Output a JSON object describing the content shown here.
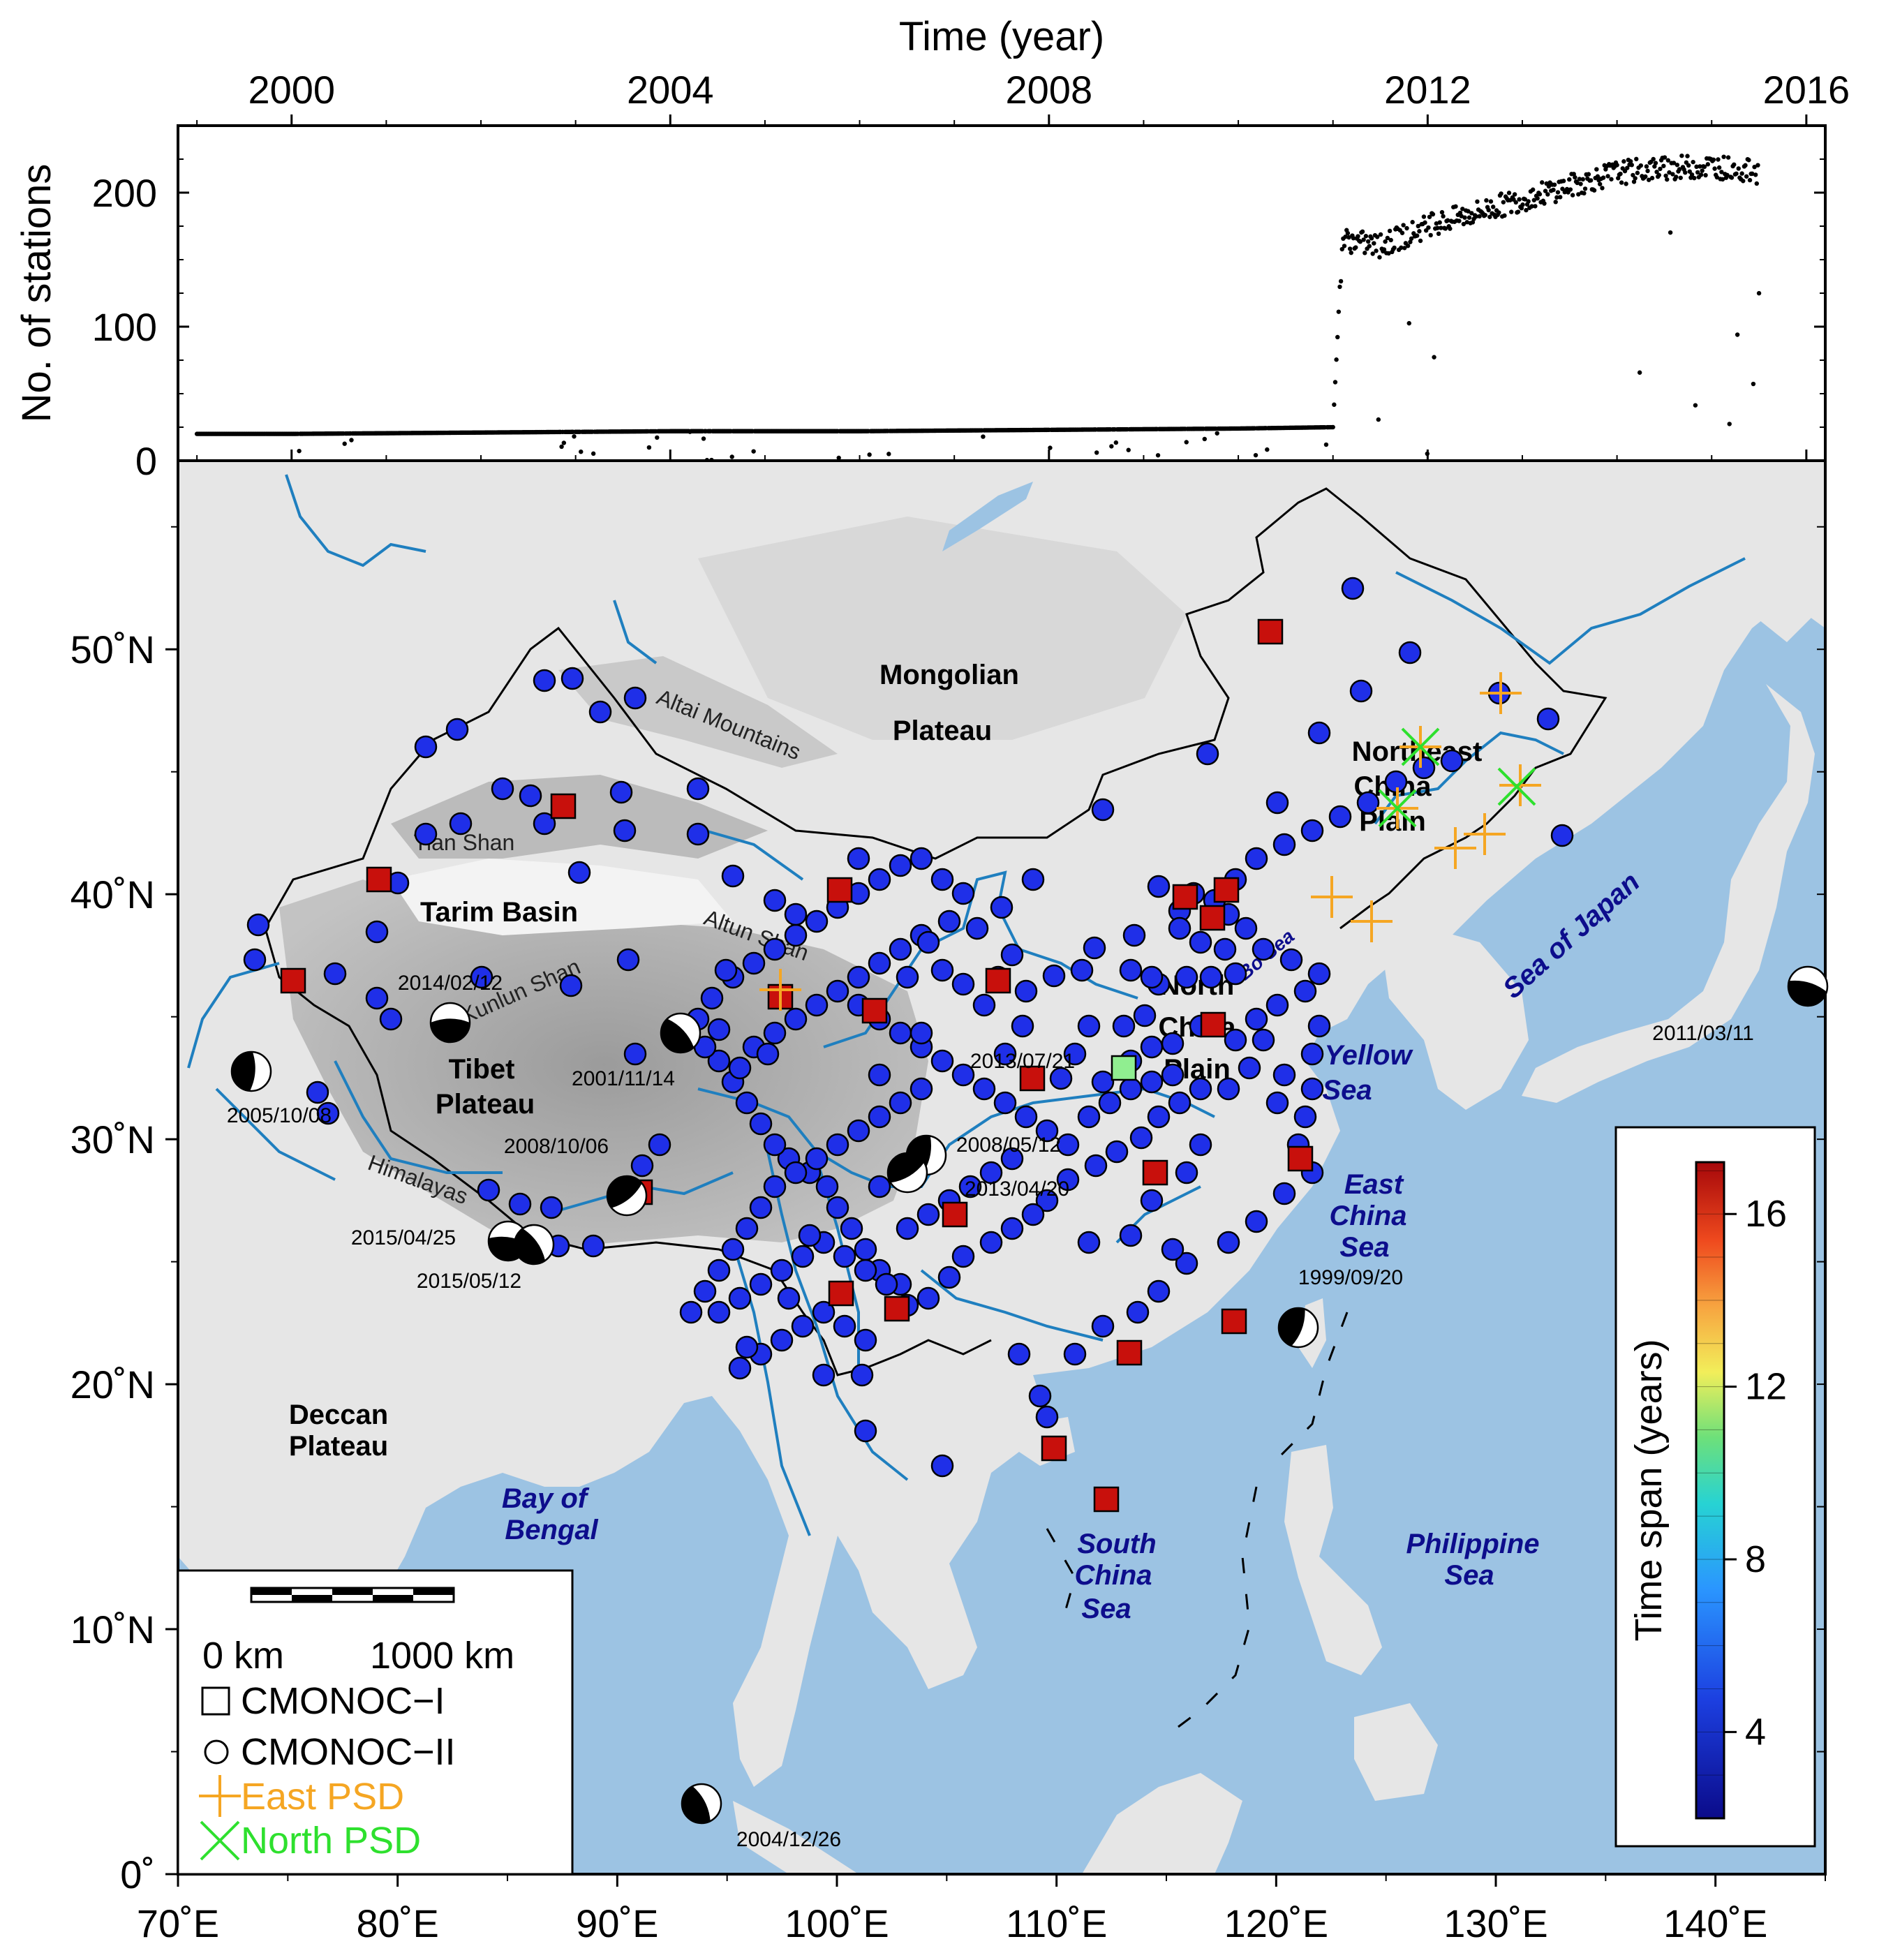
{
  "timeseries": {
    "x_title": "Time (year)",
    "y_title": "No. of stations",
    "x_ticks": [
      "2000",
      "2004",
      "2008",
      "2012",
      "2016"
    ],
    "y_ticks": [
      "0",
      "100",
      "200"
    ]
  },
  "chart_data": {
    "type": "scatter",
    "xlabel": "Time (year)",
    "ylabel": "No. of stations",
    "xlim": [
      1998.8,
      2016.2
    ],
    "ylim": [
      0,
      250
    ],
    "series": [
      {
        "values_description_x": [
          1999.0,
          2000.0,
          2002.0,
          2004.0,
          2006.0,
          2008.0,
          2010.0,
          2011.0,
          2011.1,
          2011.5,
          2012.0,
          2012.5,
          2013.0,
          2013.5,
          2014.0,
          2014.5,
          2015.0,
          2015.5
        ],
        "y": [
          20,
          20,
          21,
          22,
          22,
          23,
          24,
          25,
          165,
          160,
          175,
          185,
          195,
          205,
          215,
          218,
          220,
          215
        ]
      }
    ]
  },
  "map": {
    "lon_ticks": [
      "70˚E",
      "80˚E",
      "90˚E",
      "100˚E",
      "110˚E",
      "120˚E",
      "130˚E",
      "140˚E"
    ],
    "lat_ticks": [
      "0˚",
      "10˚N",
      "20˚N",
      "30˚N",
      "40˚N",
      "50˚N"
    ],
    "regions": {
      "mongolian": "Mongolian",
      "plateau": "Plateau",
      "tarim": "Tarim Basin",
      "tibet": "Tibet",
      "tibet_plateau": "Plateau",
      "north": "North",
      "china": "China",
      "plain": "Plain",
      "ne_northeast": "Northeast",
      "ne_china": "China",
      "ne_plain": "Plain",
      "deccan": "Deccan",
      "deccan_plateau": "Plateau"
    },
    "seas": {
      "sea_of_japan": "Sea of Japan",
      "yellow": "Yellow",
      "sea": "Sea",
      "east": "East",
      "east_china": "China",
      "east_sea": "Sea",
      "bo_sea": "Bo Sea",
      "bay_of": "Bay of",
      "bengal": "Bengal",
      "south": "South",
      "south_china": "China",
      "south_sea": "Sea",
      "philippine": "Philippine",
      "philippine_sea": "Sea"
    },
    "mountains": {
      "altai": "Altai Mountains",
      "tian": "Tian Shan",
      "kunlun": "Kunlun Shan",
      "altun": "Altun Shan",
      "himalayas": "Himalayas"
    },
    "earthquakes": [
      "2014/02/12",
      "2001/11/14",
      "2005/10/08",
      "2008/10/06",
      "2015/04/25",
      "2015/05/12",
      "2013/07/21",
      "2008/05/12",
      "2013/04/20",
      "1999/09/20",
      "2011/03/11",
      "2004/12/26"
    ]
  },
  "legend": {
    "scale_start": "0 km",
    "scale_end": "1000 km",
    "cmonoc1": "CMONOC−I",
    "cmonoc2": "CMONOC−II",
    "east_psd": "East PSD",
    "north_psd": "North PSD"
  },
  "colorbar": {
    "title": "Time span (years)",
    "ticks": [
      "4",
      "8",
      "12",
      "16"
    ]
  },
  "colors": {
    "ocean": "#9cc3e3",
    "river": "#1f7fbf",
    "station_circle": "#1f2fe8",
    "station_square": "#c8100c",
    "east_psd": "#f5a623",
    "north_psd": "#2ee02e",
    "sea_label": "#0d0d8c"
  }
}
